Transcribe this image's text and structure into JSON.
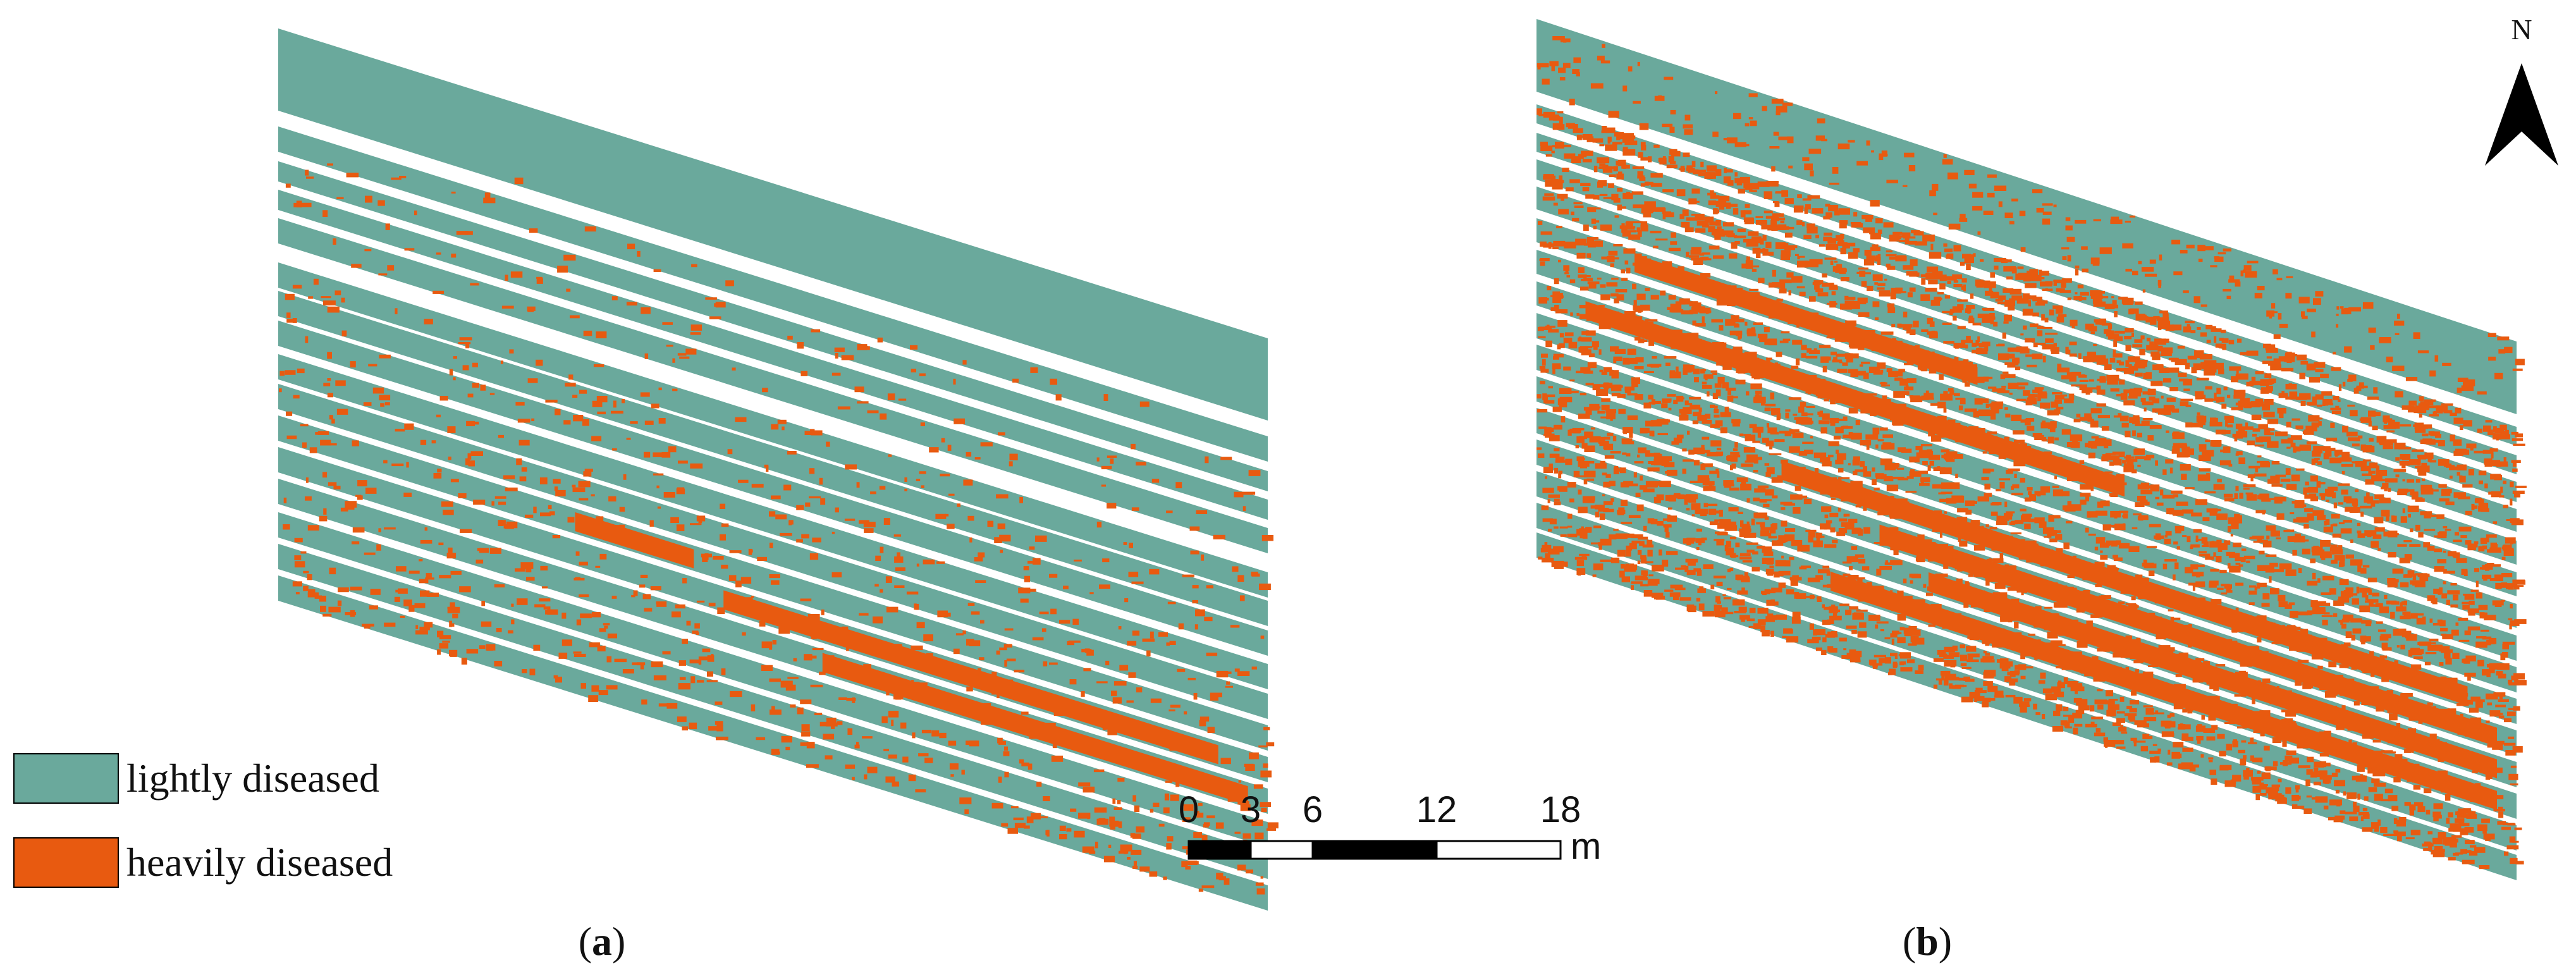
{
  "colors": {
    "lightly": "#6aa99c",
    "heavily": "#e85a10",
    "background": "#ffffff",
    "outline": "#000000"
  },
  "legend": {
    "items": [
      {
        "label": "lightly diseased",
        "color_key": "lightly"
      },
      {
        "label": "heavily diseased",
        "color_key": "heavily"
      }
    ]
  },
  "scale_bar": {
    "ticks": [
      "0",
      "3",
      "6",
      "12",
      "18"
    ],
    "unit": "m"
  },
  "north_arrow": {
    "label": "N",
    "icon": "north-arrow-icon"
  },
  "panels": [
    {
      "caption": "(a)",
      "caption_letter": "a",
      "disease_level": "low"
    },
    {
      "caption": "(b)",
      "caption_letter": "b",
      "disease_level": "high"
    }
  ]
}
